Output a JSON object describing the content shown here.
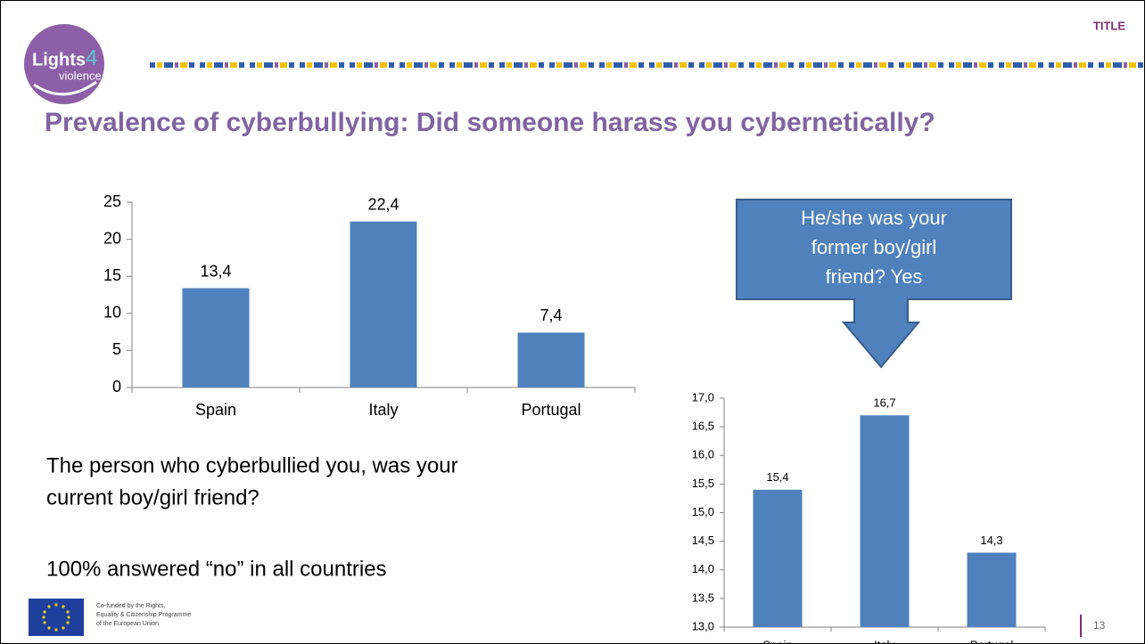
{
  "header": {
    "tag": "TITLE",
    "title": "Prevalence of cyberbullying:  Did someone harass you cybernetically?"
  },
  "logo": {
    "word": "Lights",
    "number": "4",
    "sub": "violence"
  },
  "chart_data": [
    {
      "type": "bar",
      "categories": [
        "Spain",
        "Italy",
        "Portugal"
      ],
      "values": [
        13.4,
        22.4,
        7.4
      ],
      "value_labels": [
        "13,4",
        "22,4",
        "7,4"
      ],
      "color": "#4f81bd",
      "ylim": [
        0,
        25
      ],
      "yticks": [
        0,
        5,
        10,
        15,
        20,
        25
      ],
      "grid": false
    },
    {
      "type": "bar",
      "categories": [
        "Spain",
        "Italy",
        "Portugal"
      ],
      "values": [
        15.4,
        16.7,
        14.3
      ],
      "value_labels": [
        "15,4",
        "16,7",
        "14,3"
      ],
      "color": "#4f81bd",
      "ylim": [
        13,
        17
      ],
      "yticks": [
        {
          "value": 13,
          "label": "13,0"
        },
        {
          "value": 13.5,
          "label": "13,5"
        },
        {
          "value": 14,
          "label": "14,0"
        },
        {
          "value": 14.5,
          "label": "14,5"
        },
        {
          "value": 15,
          "label": "15,0"
        },
        {
          "value": 15.5,
          "label": "15,5"
        },
        {
          "value": 16,
          "label": "16,0"
        },
        {
          "value": 16.5,
          "label": "16,5"
        },
        {
          "value": 17,
          "label": "17,0"
        }
      ],
      "grid": false
    }
  ],
  "callout": {
    "lines": [
      "He/she was  your",
      "former boy/girl",
      "friend? Yes"
    ]
  },
  "body": {
    "question": [
      "The person who cyberbullied you,  was your",
      "current boy/girl friend?"
    ],
    "answer": "100% answered “no” in all countries"
  },
  "footer": {
    "funding": [
      "Co-funded by the Rights,",
      "Equality & Citizenship Programme",
      "of the European Union"
    ],
    "page": "13"
  }
}
